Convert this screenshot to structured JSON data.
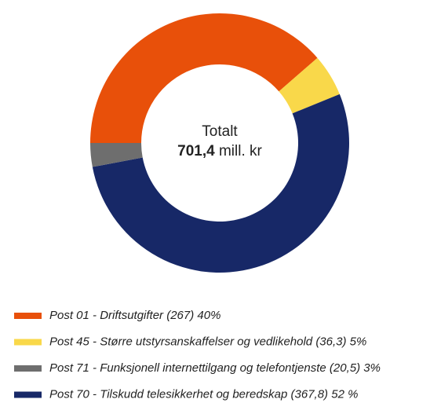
{
  "chart_data": {
    "type": "donut",
    "center_title": "Totalt",
    "center_value": "701,4",
    "center_unit": "mill. kr",
    "categories": [
      "Post 01 - Driftsutgifter (267) 40%",
      "Post 45 - Større utstyrsanskaffelser og vedlikehold (36,3) 5%",
      "Post 70 - Tilskudd telesikkerhet og beredskap (367,8) 52 %",
      "Post 71 - Funksjonell internettilgang og telefontjenste (20,5) 3%"
    ],
    "values": [
      267,
      36.3,
      367.8,
      20.5
    ],
    "colors": [
      "#e8500a",
      "#f9d84a",
      "#172867",
      "#6e6e6e"
    ],
    "legend_order": [
      0,
      1,
      3,
      2
    ]
  }
}
